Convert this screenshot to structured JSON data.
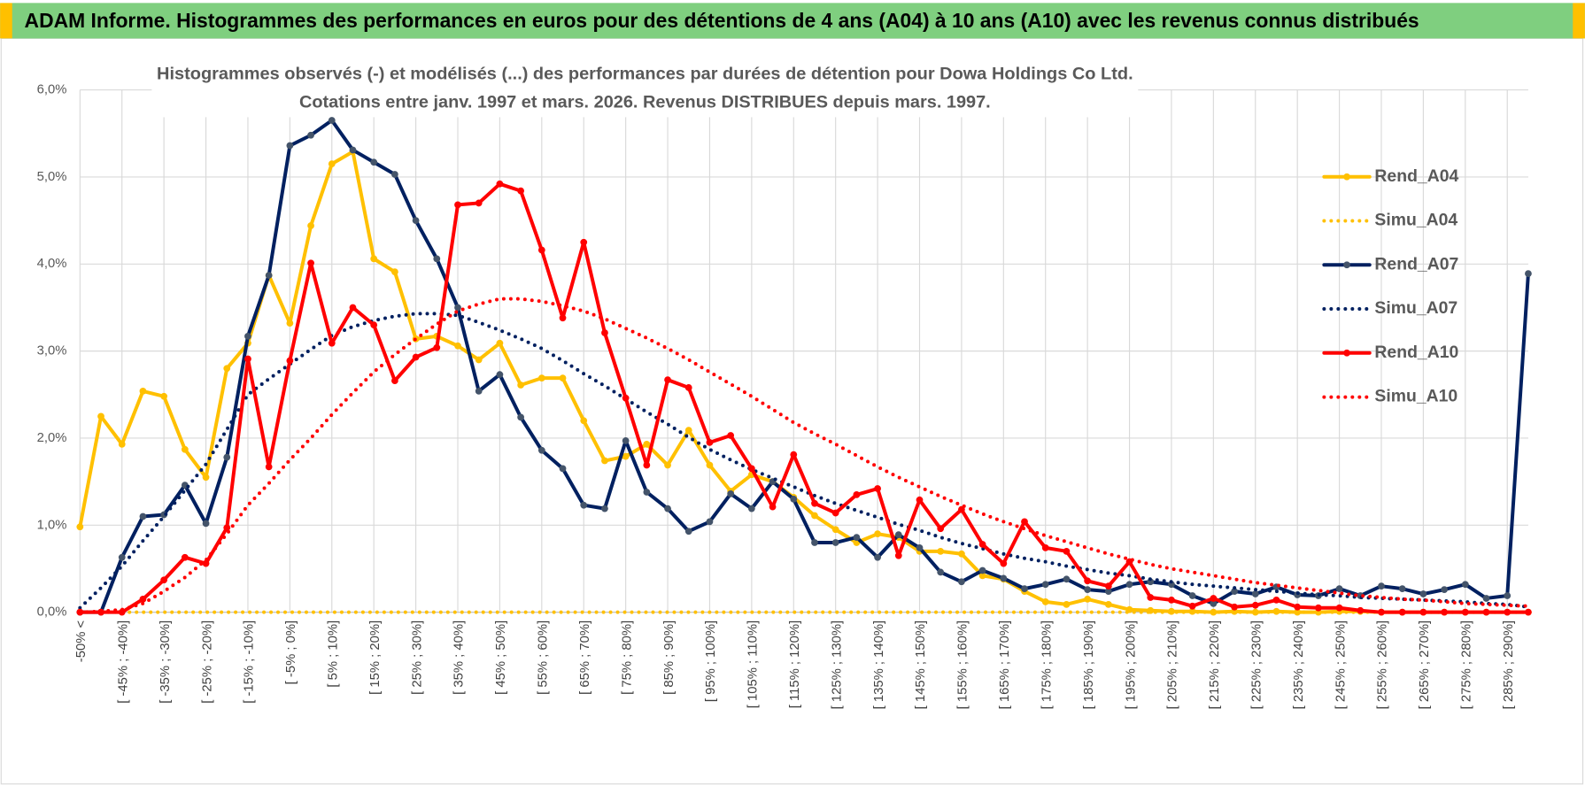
{
  "header": {
    "title": "ADAM Informe. Histogrammes des performances en euros pour des détentions de 4 ans (A04) à 10 ans (A10) avec les revenus connus distribués"
  },
  "chart_data": {
    "type": "line",
    "title": "Histogrammes observés (-) et modélisés (...) des performances par durées de détention pour Dowa Holdings Co Ltd.",
    "subtitle": "Cotations entre janv. 1997 et mars. 2026. Revenus DISTRIBUES depuis mars. 1997.",
    "categories": [
      "-50% <",
      null,
      "[ -45% ; -40%]",
      null,
      "[ -35% ; -30%]",
      null,
      "[ -25% ; -20%]",
      null,
      "[ -15% ; -10%]",
      null,
      "[ -5% ; 0%]",
      null,
      "[ 5% ; 10%]",
      null,
      "[ 15% ; 20%]",
      null,
      "[ 25% ; 30%]",
      null,
      "[ 35% ; 40%]",
      null,
      "[ 45% ; 50%]",
      null,
      "[ 55% ; 60%]",
      null,
      "[ 65% ; 70%]",
      null,
      "[ 75% ; 80%]",
      null,
      "[ 85% ; 90%]",
      null,
      "[ 95% ; 100%]",
      null,
      "[ 105% ; 110%]",
      null,
      "[ 115% ; 120%]",
      null,
      "[ 125% ; 130%]",
      null,
      "[ 135% ; 140%]",
      null,
      "[ 145% ; 150%]",
      null,
      "[ 155% ; 160%]",
      null,
      "[ 165% ; 170%]",
      null,
      "[ 175% ; 180%]",
      null,
      "[ 185% ; 190%]",
      null,
      "[ 195% ; 200%]",
      null,
      "[ 205% ; 210%]",
      null,
      "[ 215% ; 220%]",
      null,
      "[ 225% ; 230%]",
      null,
      "[ 235% ; 240%]",
      null,
      "[ 245% ; 250%]",
      null,
      "[ 255% ; 260%]",
      null,
      "[ 265% ; 270%]",
      null,
      "[ 275% ; 280%]",
      null,
      "[ 285% ; 290%]",
      null
    ],
    "ylim": [
      0,
      6
    ],
    "yticks": [
      {
        "value": 0,
        "label": "0,0%"
      },
      {
        "value": 1,
        "label": "1,0%"
      },
      {
        "value": 2,
        "label": "2,0%"
      },
      {
        "value": 3,
        "label": "3,0%"
      },
      {
        "value": 4,
        "label": "4,0%"
      },
      {
        "value": 5,
        "label": "5,0%"
      },
      {
        "value": 6,
        "label": "6,0%"
      }
    ],
    "grid": true,
    "legend": "right",
    "series": [
      {
        "name": "Rend_A04",
        "color": "#ffc000",
        "line_style": "solid",
        "markers": true,
        "values": [
          0.98,
          2.25,
          1.93,
          2.54,
          2.48,
          1.87,
          1.55,
          2.8,
          3.09,
          3.87,
          3.32,
          4.44,
          5.15,
          5.29,
          4.06,
          3.91,
          3.14,
          3.17,
          3.06,
          2.9,
          3.09,
          2.61,
          2.69,
          2.69,
          2.2,
          1.74,
          1.79,
          1.93,
          1.69,
          2.09,
          1.69,
          1.39,
          1.58,
          1.5,
          1.32,
          1.11,
          0.95,
          0.8,
          0.9,
          0.86,
          0.7,
          0.7,
          0.67,
          0.42,
          0.38,
          0.24,
          0.12,
          0.09,
          0.15,
          0.09,
          0.03,
          0.02,
          0.01,
          0.01,
          0,
          0.01,
          0,
          0.01,
          0,
          0,
          0.01,
          0.01,
          0,
          0,
          0,
          0,
          0,
          0,
          0,
          0
        ]
      },
      {
        "name": "Simu_A04",
        "color": "#ffc000",
        "line_style": "dotted",
        "markers": false,
        "values": [
          0,
          0,
          0,
          0,
          0,
          0,
          0,
          0,
          0,
          0,
          0,
          0,
          0,
          0,
          0,
          0,
          0,
          0,
          0,
          0,
          0,
          0,
          0,
          0,
          0,
          0,
          0,
          0,
          0,
          0,
          0,
          0,
          0,
          0,
          0,
          0,
          0,
          0,
          0,
          0,
          0,
          0,
          0,
          0,
          0,
          0,
          0,
          0,
          0,
          0,
          0,
          0,
          0,
          0,
          0,
          0,
          0,
          0,
          0,
          0,
          0,
          0,
          0,
          0,
          0,
          0,
          0,
          0,
          0,
          0
        ]
      },
      {
        "name": "Rend_A07",
        "color": "#002060",
        "marker_color": "#44546a",
        "line_style": "solid",
        "markers": true,
        "values": [
          0,
          0,
          0.63,
          1.1,
          1.12,
          1.46,
          1.02,
          1.78,
          3.17,
          3.87,
          5.36,
          5.48,
          5.65,
          5.31,
          5.17,
          5.03,
          4.5,
          4.06,
          3.5,
          2.54,
          2.73,
          2.24,
          1.86,
          1.65,
          1.23,
          1.19,
          1.97,
          1.38,
          1.19,
          0.93,
          1.04,
          1.36,
          1.19,
          1.5,
          1.3,
          0.8,
          0.8,
          0.86,
          0.63,
          0.89,
          0.74,
          0.46,
          0.35,
          0.48,
          0.39,
          0.27,
          0.32,
          0.38,
          0.26,
          0.24,
          0.32,
          0.35,
          0.32,
          0.19,
          0.1,
          0.24,
          0.21,
          0.29,
          0.2,
          0.19,
          0.27,
          0.19,
          0.3,
          0.27,
          0.21,
          0.26,
          0.32,
          0.16,
          0.19,
          3.89
        ]
      },
      {
        "name": "Simu_A07",
        "color": "#002060",
        "line_style": "dotted",
        "markers": false,
        "values": [
          0.05,
          0.28,
          0.53,
          0.82,
          1.1,
          1.4,
          1.7,
          2.1,
          2.5,
          2.68,
          2.85,
          3.02,
          3.18,
          3.28,
          3.35,
          3.4,
          3.43,
          3.43,
          3.41,
          3.33,
          3.24,
          3.14,
          3.03,
          2.89,
          2.74,
          2.6,
          2.45,
          2.3,
          2.16,
          2.01,
          1.87,
          1.75,
          1.64,
          1.54,
          1.44,
          1.34,
          1.25,
          1.17,
          1.09,
          1.01,
          0.94,
          0.86,
          0.79,
          0.73,
          0.67,
          0.62,
          0.58,
          0.53,
          0.49,
          0.45,
          0.42,
          0.38,
          0.35,
          0.32,
          0.3,
          0.28,
          0.26,
          0.24,
          0.22,
          0.2,
          0.19,
          0.17,
          0.16,
          0.15,
          0.14,
          0.13,
          0.12,
          0.1,
          0.09,
          0.06
        ]
      },
      {
        "name": "Rend_A10",
        "color": "#ff0000",
        "line_style": "solid",
        "markers": true,
        "values": [
          0,
          0,
          0,
          0.15,
          0.37,
          0.63,
          0.56,
          0.97,
          2.91,
          1.67,
          2.89,
          4.01,
          3.09,
          3.5,
          3.3,
          2.66,
          2.93,
          3.04,
          4.68,
          4.7,
          4.92,
          4.84,
          4.16,
          3.38,
          4.25,
          3.21,
          2.46,
          1.69,
          2.67,
          2.58,
          1.95,
          2.03,
          1.65,
          1.21,
          1.81,
          1.25,
          1.14,
          1.35,
          1.42,
          0.65,
          1.29,
          0.96,
          1.18,
          0.78,
          0.56,
          1.04,
          0.74,
          0.7,
          0.36,
          0.3,
          0.58,
          0.17,
          0.14,
          0.07,
          0.16,
          0.06,
          0.08,
          0.14,
          0.06,
          0.05,
          0.05,
          0.02,
          0,
          0,
          0,
          0,
          0,
          0,
          0,
          0
        ]
      },
      {
        "name": "Simu_A10",
        "color": "#ff0000",
        "line_style": "dotted",
        "markers": false,
        "values": [
          0,
          0.01,
          0.03,
          0.1,
          0.24,
          0.4,
          0.6,
          0.9,
          1.23,
          1.48,
          1.75,
          2.0,
          2.27,
          2.52,
          2.76,
          2.96,
          3.14,
          3.31,
          3.46,
          3.54,
          3.6,
          3.6,
          3.57,
          3.52,
          3.46,
          3.37,
          3.26,
          3.15,
          3.03,
          2.9,
          2.76,
          2.62,
          2.48,
          2.33,
          2.18,
          2.05,
          1.93,
          1.8,
          1.67,
          1.55,
          1.44,
          1.33,
          1.23,
          1.13,
          1.04,
          0.96,
          0.88,
          0.81,
          0.74,
          0.67,
          0.61,
          0.55,
          0.5,
          0.46,
          0.42,
          0.38,
          0.34,
          0.31,
          0.28,
          0.25,
          0.22,
          0.19,
          0.17,
          0.15,
          0.14,
          0.12,
          0.1,
          0.09,
          0.08,
          0.07
        ]
      }
    ]
  }
}
